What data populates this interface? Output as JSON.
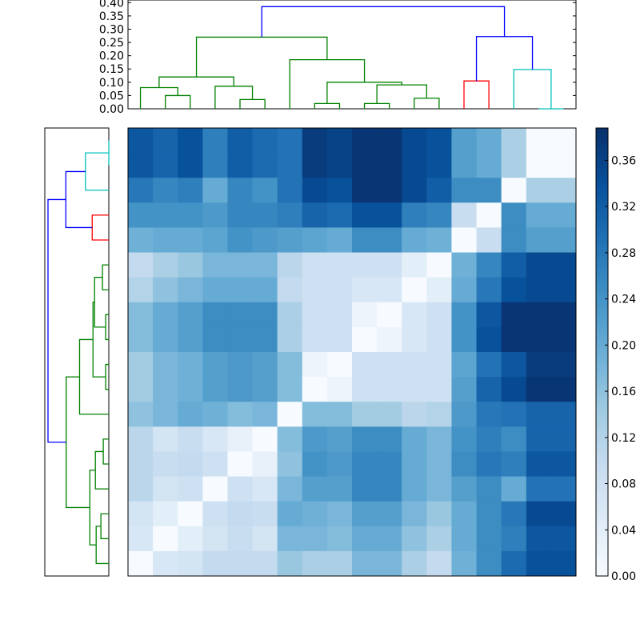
{
  "chart_data": [
    {
      "type": "dendrogram",
      "orientation": "top",
      "ylim": [
        0,
        0.41
      ],
      "yticks": [
        "0.00",
        "0.05",
        "0.10",
        "0.15",
        "0.20",
        "0.25",
        "0.30",
        "0.35",
        "0.40"
      ],
      "leaf_order": [
        0,
        1,
        2,
        3,
        4,
        5,
        6,
        7,
        8,
        9,
        10,
        11,
        12,
        13,
        14,
        15,
        16,
        17
      ],
      "colors": {
        "green": "#008000",
        "red": "#ff0000",
        "cyan": "#00bfbf",
        "blue": "#0000ff"
      },
      "merges": [
        [
          16,
          17,
          0.0,
          "cyan"
        ],
        [
          7,
          8,
          0.02,
          "green"
        ],
        [
          9,
          10,
          0.02,
          "green"
        ],
        [
          4,
          5,
          0.035,
          "green"
        ],
        [
          11,
          12,
          0.04,
          "green"
        ],
        [
          1,
          2,
          0.05,
          "green"
        ],
        [
          0,
          23,
          0.08,
          "green"
        ],
        [
          3,
          21,
          0.085,
          "green"
        ],
        [
          20,
          22,
          0.09,
          "green"
        ],
        [
          19,
          26,
          0.1,
          "green"
        ],
        [
          13,
          14,
          0.105,
          "red"
        ],
        [
          24,
          25,
          0.12,
          "green"
        ],
        [
          15,
          18,
          0.148,
          "cyan"
        ],
        [
          6,
          27,
          0.185,
          "green"
        ],
        [
          29,
          31,
          0.27,
          "green"
        ],
        [
          28,
          30,
          0.272,
          "blue"
        ],
        [
          32,
          33,
          0.385,
          "blue"
        ]
      ]
    },
    {
      "type": "dendrogram",
      "orientation": "left",
      "same_linkage_as": "top",
      "leaf_order_top_to_bottom": [
        17,
        16,
        15,
        14,
        13,
        12,
        11,
        10,
        9,
        8,
        7,
        6,
        5,
        4,
        3,
        2,
        1,
        0
      ]
    },
    {
      "type": "heatmap",
      "colormap": "Blues",
      "vmin": 0.0,
      "vmax": 0.388,
      "colorbar_ticks": [
        "0.00",
        "0.04",
        "0.08",
        "0.12",
        "0.16",
        "0.20",
        "0.24",
        "0.28",
        "0.32",
        "0.36"
      ],
      "matrix": [
        [
          0.33,
          0.31,
          0.34,
          0.27,
          0.32,
          0.3,
          0.29,
          0.37,
          0.36,
          0.38,
          0.38,
          0.35,
          0.34,
          0.22,
          0.2,
          0.13,
          0.0,
          0.0
        ],
        [
          0.33,
          0.31,
          0.34,
          0.27,
          0.32,
          0.3,
          0.29,
          0.37,
          0.36,
          0.38,
          0.38,
          0.35,
          0.34,
          0.22,
          0.2,
          0.13,
          0.0,
          0.0
        ],
        [
          0.28,
          0.26,
          0.27,
          0.2,
          0.26,
          0.24,
          0.29,
          0.35,
          0.34,
          0.38,
          0.38,
          0.35,
          0.32,
          0.25,
          0.25,
          0.0,
          0.13,
          0.13
        ],
        [
          0.24,
          0.24,
          0.24,
          0.23,
          0.26,
          0.26,
          0.27,
          0.31,
          0.3,
          0.34,
          0.34,
          0.27,
          0.26,
          0.09,
          0.0,
          0.25,
          0.2,
          0.2
        ],
        [
          0.19,
          0.2,
          0.2,
          0.21,
          0.24,
          0.23,
          0.22,
          0.21,
          0.2,
          0.25,
          0.25,
          0.2,
          0.19,
          0.0,
          0.09,
          0.25,
          0.22,
          0.22
        ],
        [
          0.1,
          0.13,
          0.15,
          0.18,
          0.18,
          0.18,
          0.11,
          0.08,
          0.08,
          0.08,
          0.08,
          0.04,
          0.0,
          0.19,
          0.26,
          0.32,
          0.35,
          0.35
        ],
        [
          0.12,
          0.16,
          0.18,
          0.2,
          0.2,
          0.2,
          0.1,
          0.08,
          0.08,
          0.06,
          0.06,
          0.0,
          0.04,
          0.2,
          0.28,
          0.34,
          0.35,
          0.35
        ],
        [
          0.17,
          0.2,
          0.22,
          0.25,
          0.25,
          0.25,
          0.13,
          0.08,
          0.08,
          0.02,
          0.0,
          0.06,
          0.08,
          0.24,
          0.33,
          0.38,
          0.38,
          0.38
        ],
        [
          0.17,
          0.2,
          0.22,
          0.25,
          0.25,
          0.25,
          0.13,
          0.08,
          0.08,
          0.0,
          0.02,
          0.06,
          0.08,
          0.24,
          0.34,
          0.38,
          0.38,
          0.38
        ],
        [
          0.14,
          0.18,
          0.19,
          0.22,
          0.23,
          0.22,
          0.17,
          0.02,
          0.0,
          0.08,
          0.08,
          0.08,
          0.08,
          0.21,
          0.29,
          0.33,
          0.37,
          0.37
        ],
        [
          0.14,
          0.18,
          0.19,
          0.22,
          0.23,
          0.22,
          0.17,
          0.0,
          0.02,
          0.08,
          0.08,
          0.08,
          0.08,
          0.22,
          0.31,
          0.35,
          0.38,
          0.38
        ],
        [
          0.16,
          0.18,
          0.2,
          0.19,
          0.17,
          0.18,
          0.0,
          0.17,
          0.17,
          0.14,
          0.14,
          0.11,
          0.12,
          0.23,
          0.28,
          0.29,
          0.31,
          0.31
        ],
        [
          0.11,
          0.07,
          0.09,
          0.06,
          0.03,
          0.0,
          0.17,
          0.23,
          0.22,
          0.25,
          0.25,
          0.2,
          0.18,
          0.24,
          0.27,
          0.25,
          0.31,
          0.31
        ],
        [
          0.11,
          0.09,
          0.1,
          0.08,
          0.0,
          0.03,
          0.16,
          0.24,
          0.23,
          0.26,
          0.26,
          0.2,
          0.18,
          0.25,
          0.28,
          0.27,
          0.33,
          0.33
        ],
        [
          0.11,
          0.07,
          0.08,
          0.0,
          0.08,
          0.06,
          0.18,
          0.22,
          0.22,
          0.26,
          0.26,
          0.2,
          0.18,
          0.22,
          0.25,
          0.2,
          0.29,
          0.29
        ],
        [
          0.07,
          0.04,
          0.0,
          0.08,
          0.1,
          0.09,
          0.2,
          0.19,
          0.18,
          0.22,
          0.22,
          0.18,
          0.15,
          0.2,
          0.25,
          0.28,
          0.35,
          0.35
        ],
        [
          0.06,
          0.0,
          0.04,
          0.07,
          0.09,
          0.07,
          0.18,
          0.18,
          0.17,
          0.2,
          0.2,
          0.16,
          0.13,
          0.2,
          0.25,
          0.27,
          0.33,
          0.33
        ],
        [
          0.0,
          0.06,
          0.07,
          0.1,
          0.1,
          0.1,
          0.15,
          0.13,
          0.13,
          0.18,
          0.18,
          0.13,
          0.1,
          0.19,
          0.25,
          0.3,
          0.34,
          0.34
        ]
      ]
    }
  ]
}
